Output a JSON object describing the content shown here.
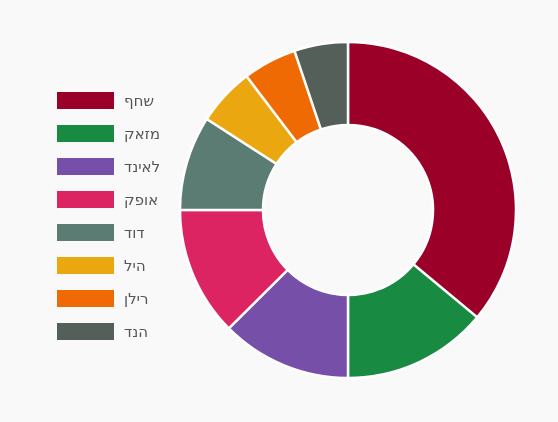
{
  "chart_data": {
    "type": "pie",
    "donut": true,
    "legend_position": "left",
    "slices": [
      {
        "label": "שחף",
        "value": 35.6,
        "color": "#9b0029"
      },
      {
        "label": "מזאק",
        "value": 13.8,
        "color": "#188a42"
      },
      {
        "label": "לאינד",
        "value": 12.4,
        "color": "#7650a8"
      },
      {
        "label": "אופק",
        "value": 12.3,
        "color": "#dc2462"
      },
      {
        "label": "דוד",
        "value": 9.0,
        "color": "#5a7c72"
      },
      {
        "label": "היל",
        "value": 5.5,
        "color": "#eba70f"
      },
      {
        "label": "רילן",
        "value": 5.1,
        "color": "#f06a04"
      },
      {
        "label": "הנד",
        "value": 5.1,
        "color": "#545f5a"
      }
    ]
  }
}
